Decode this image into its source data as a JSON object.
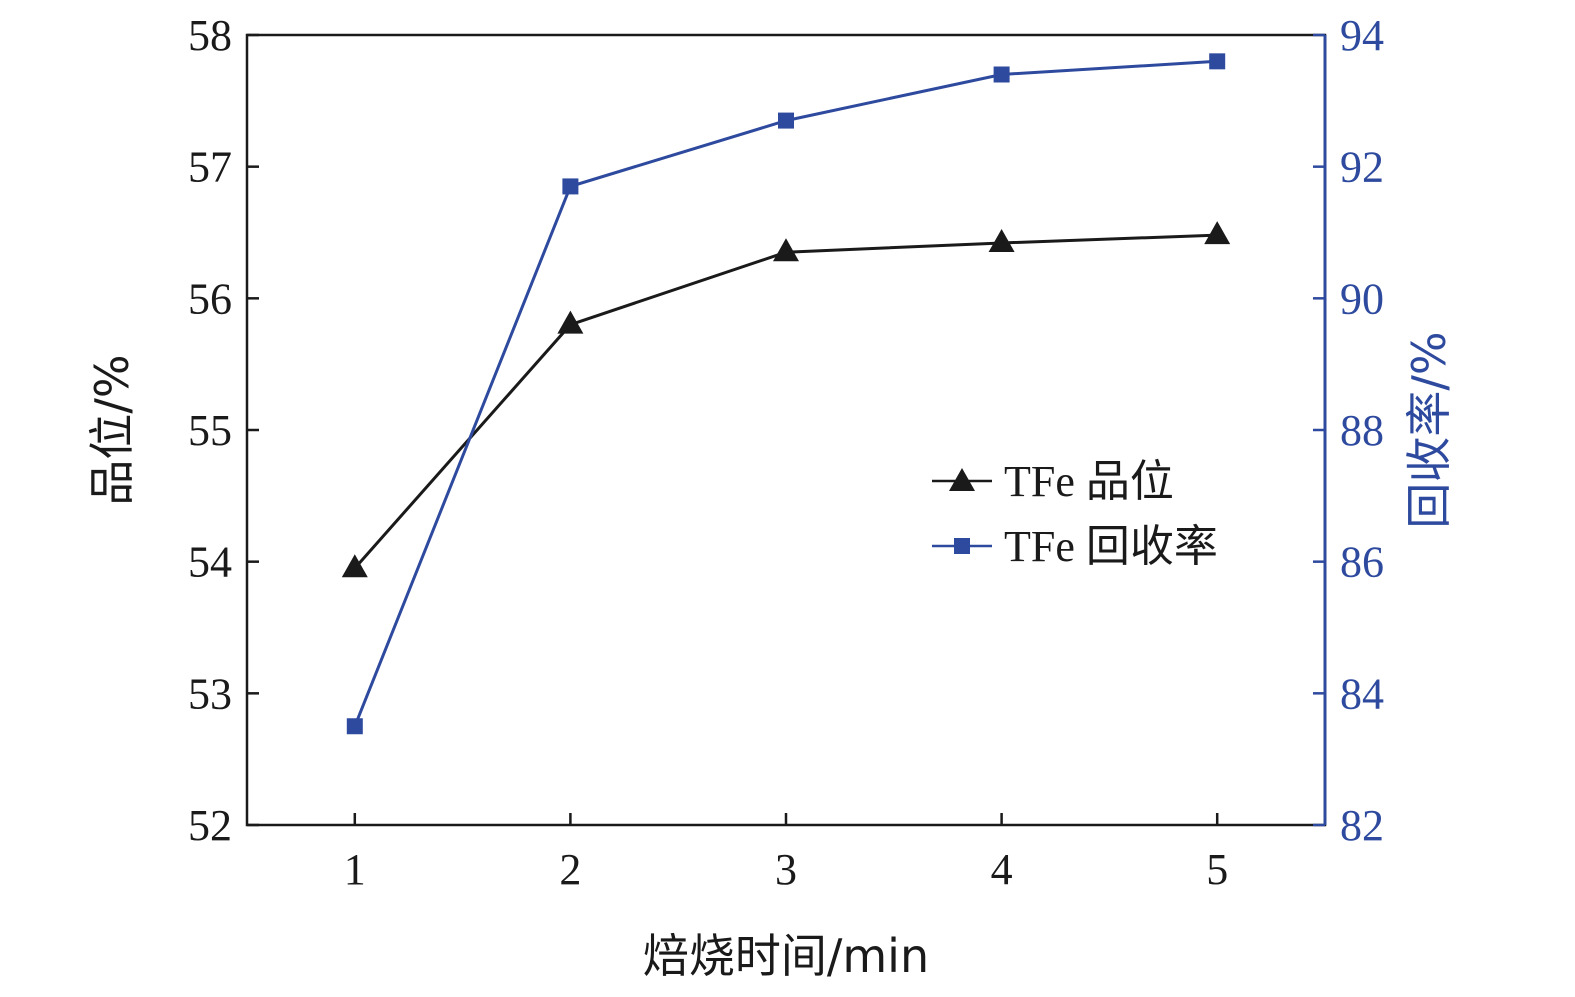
{
  "chart_data": {
    "type": "line",
    "xlabel": "焙烧时间/min",
    "x": [
      1,
      2,
      3,
      4,
      5
    ],
    "xlim": [
      0.5,
      5.5
    ],
    "left_axis": {
      "label": "品位/%",
      "ylim": [
        52,
        58
      ],
      "ticks": [
        52,
        53,
        54,
        55,
        56,
        57,
        58
      ],
      "color": "#1a1a1a"
    },
    "right_axis": {
      "label": "回收率/%",
      "ylim": [
        82,
        94
      ],
      "ticks": [
        82,
        84,
        86,
        88,
        90,
        92,
        94
      ],
      "color": "#2e4a9e"
    },
    "series": [
      {
        "name": "TFe 品位",
        "axis": "left",
        "marker": "triangle",
        "color": "#1a1a1a",
        "values": [
          53.95,
          55.8,
          56.35,
          56.42,
          56.48
        ]
      },
      {
        "name": "TFe 回收率",
        "axis": "right",
        "marker": "square",
        "color": "#2e4a9e",
        "values": [
          83.5,
          91.7,
          92.7,
          93.4,
          93.6
        ]
      }
    ],
    "legend_position": "center-right",
    "grid": false
  }
}
